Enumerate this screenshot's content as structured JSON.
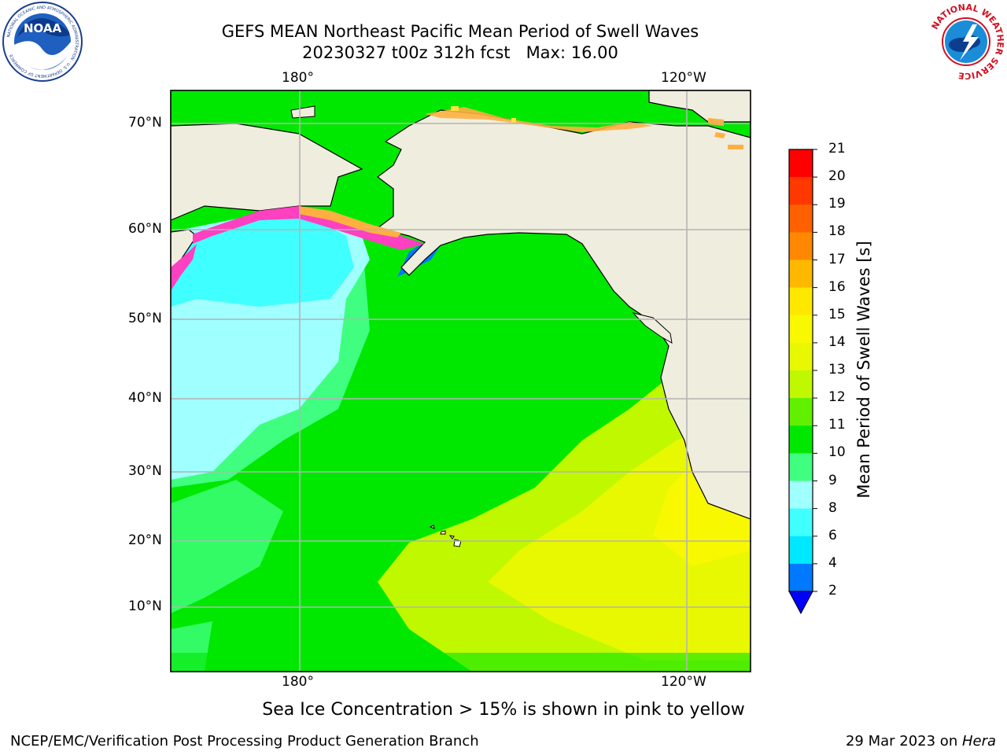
{
  "title": {
    "line1": "GEFS MEAN Northeast Pacific Mean Period of Swell Waves",
    "line2": "20230327 t00z 312h fcst   Max: 16.00"
  },
  "map": {
    "top_lon_labels": [
      "180°",
      "120°W"
    ],
    "bottom_lon_labels": [
      "180°",
      "120°W"
    ],
    "lat_labels": [
      "70°N",
      "60°N",
      "50°N",
      "40°N",
      "30°N",
      "20°N",
      "10°N"
    ],
    "colors": {
      "land": "#efedde",
      "coast": "#000000",
      "grid": "#b4b4b4",
      "ice_pink": "#ff40c0",
      "ice_orange": "#ffb040",
      "ice_yellow": "#ffe040"
    }
  },
  "colorbar": {
    "label": "Mean Period of Swell Waves [s]",
    "ticks": [
      "2",
      "4",
      "6",
      "8",
      "9",
      "10",
      "11",
      "12",
      "13",
      "14",
      "15",
      "16",
      "17",
      "18",
      "19",
      "20",
      "21"
    ],
    "under_color": "#0000ff",
    "bands": [
      {
        "from": 2,
        "to": 4,
        "color": "#0078ff"
      },
      {
        "from": 4,
        "to": 6,
        "color": "#00e8ff"
      },
      {
        "from": 6,
        "to": 8,
        "color": "#40ffff"
      },
      {
        "from": 8,
        "to": 9,
        "color": "#a0ffff"
      },
      {
        "from": 9,
        "to": 10,
        "color": "#40ff80"
      },
      {
        "from": 10,
        "to": 11,
        "color": "#00e800"
      },
      {
        "from": 11,
        "to": 12,
        "color": "#60f000"
      },
      {
        "from": 12,
        "to": 13,
        "color": "#c0f800"
      },
      {
        "from": 13,
        "to": 14,
        "color": "#e8f800"
      },
      {
        "from": 14,
        "to": 15,
        "color": "#f8f800"
      },
      {
        "from": 15,
        "to": 16,
        "color": "#ffe800"
      },
      {
        "from": 16,
        "to": 17,
        "color": "#ffb800"
      },
      {
        "from": 17,
        "to": 18,
        "color": "#ff8800"
      },
      {
        "from": 18,
        "to": 19,
        "color": "#ff6000"
      },
      {
        "from": 19,
        "to": 20,
        "color": "#ff3800"
      },
      {
        "from": 20,
        "to": 21,
        "color": "#ff0000"
      }
    ]
  },
  "subtitle": "Sea Ice Concentration > 15% is shown in pink to yellow",
  "footer": {
    "left": "NCEP/EMC/Verification Post Processing Product Generation Branch",
    "right_prefix": "29 Mar 2023 on ",
    "right_host": "Hera"
  },
  "logos": {
    "noaa_text": "NOAA",
    "noaa_ring_text": "NATIONAL OCEANIC AND ATMOSPHERIC ADMINISTRATION · U.S. DEPARTMENT OF COMMERCE",
    "nws_ring_text": "NATIONAL WEATHER SERVICE"
  }
}
